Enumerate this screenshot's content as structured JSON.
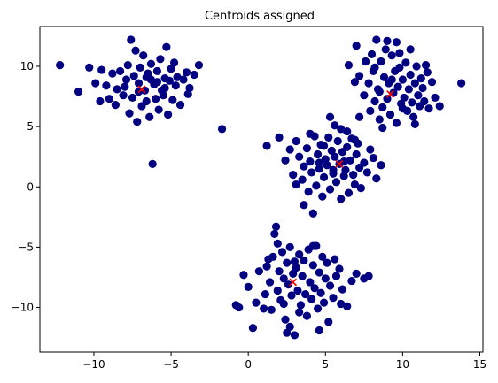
{
  "chart_data": {
    "type": "scatter",
    "title": "Centroids assigned",
    "xlabel": "",
    "ylabel": "",
    "xlim": [
      -13.5,
      15.2
    ],
    "ylim": [
      -13.7,
      13.3
    ],
    "xticks": [
      -10,
      -5,
      0,
      5,
      10,
      15
    ],
    "yticks": [
      -10,
      -5,
      0,
      5,
      10
    ],
    "grid": false,
    "colors": {
      "points": "#000080",
      "centroids": "#ff0000"
    },
    "series": [
      {
        "marker": "circle",
        "color": "#000080",
        "points": [
          [
            -12.2,
            10.1
          ],
          [
            -11.0,
            7.9
          ],
          [
            -10.3,
            9.9
          ],
          [
            -9.9,
            8.6
          ],
          [
            -9.6,
            7.1
          ],
          [
            -9.5,
            9.7
          ],
          [
            -9.2,
            8.4
          ],
          [
            -9.0,
            7.3
          ],
          [
            -8.8,
            9.4
          ],
          [
            -8.6,
            6.8
          ],
          [
            -8.5,
            8.1
          ],
          [
            -8.3,
            9.6
          ],
          [
            -8.1,
            7.6
          ],
          [
            -7.9,
            8.9
          ],
          [
            -7.8,
            10.1
          ],
          [
            -7.7,
            6.1
          ],
          [
            -7.6,
            12.2
          ],
          [
            -7.5,
            7.4
          ],
          [
            -7.4,
            9.2
          ],
          [
            -7.3,
            11.3
          ],
          [
            -7.2,
            5.4
          ],
          [
            -7.1,
            8.6
          ],
          [
            -7.0,
            9.9
          ],
          [
            -6.9,
            6.7
          ],
          [
            -6.8,
            10.9
          ],
          [
            -6.7,
            8.0
          ],
          [
            -6.6,
            7.1
          ],
          [
            -6.5,
            9.4
          ],
          [
            -6.4,
            5.8
          ],
          [
            -6.3,
            10.2
          ],
          [
            -6.2,
            1.9
          ],
          [
            -6.1,
            8.5
          ],
          [
            -6.0,
            7.3
          ],
          [
            -5.9,
            9.6
          ],
          [
            -5.8,
            6.4
          ],
          [
            -5.7,
            10.6
          ],
          [
            -5.6,
            8.0
          ],
          [
            -5.5,
            7.6
          ],
          [
            -5.4,
            9.0
          ],
          [
            -5.3,
            11.6
          ],
          [
            -5.2,
            6.0
          ],
          [
            -5.1,
            8.8
          ],
          [
            -5.0,
            9.8
          ],
          [
            -4.9,
            7.2
          ],
          [
            -4.8,
            10.3
          ],
          [
            -4.7,
            8.4
          ],
          [
            -4.6,
            9.1
          ],
          [
            -4.4,
            6.8
          ],
          [
            -4.2,
            8.9
          ],
          [
            -4.0,
            9.5
          ],
          [
            -3.8,
            8.2
          ],
          [
            -3.5,
            9.3
          ],
          [
            -3.2,
            10.1
          ],
          [
            -3.9,
            7.7
          ],
          [
            -6.3,
            8.9
          ],
          [
            -7.1,
            7.9
          ],
          [
            -8.0,
            8.3
          ],
          [
            -6.6,
            9.1
          ],
          [
            -5.9,
            8.7
          ],
          [
            -5.4,
            8.2
          ],
          [
            -1.7,
            4.8
          ],
          [
            1.2,
            3.4
          ],
          [
            2.0,
            4.1
          ],
          [
            2.4,
            2.2
          ],
          [
            2.7,
            3.1
          ],
          [
            2.9,
            1.0
          ],
          [
            3.1,
            3.8
          ],
          [
            3.3,
            2.5
          ],
          [
            3.5,
            0.6
          ],
          [
            3.6,
            1.7
          ],
          [
            3.8,
            3.2
          ],
          [
            3.9,
            -0.4
          ],
          [
            4.0,
            2.1
          ],
          [
            4.1,
            1.2
          ],
          [
            4.2,
            -2.2
          ],
          [
            4.3,
            4.2
          ],
          [
            4.4,
            0.1
          ],
          [
            4.5,
            2.7
          ],
          [
            4.6,
            1.5
          ],
          [
            4.7,
            3.5
          ],
          [
            4.8,
            -0.8
          ],
          [
            4.9,
            0.8
          ],
          [
            5.0,
            2.3
          ],
          [
            5.1,
            1.8
          ],
          [
            5.2,
            4.1
          ],
          [
            5.3,
            -0.2
          ],
          [
            5.4,
            3.0
          ],
          [
            5.5,
            1.1
          ],
          [
            5.6,
            2.5
          ],
          [
            5.7,
            0.4
          ],
          [
            5.8,
            3.8
          ],
          [
            5.9,
            1.9
          ],
          [
            6.0,
            -1.0
          ],
          [
            6.1,
            2.9
          ],
          [
            6.2,
            0.9
          ],
          [
            6.3,
            1.4
          ],
          [
            6.4,
            3.3
          ],
          [
            6.5,
            -0.5
          ],
          [
            6.6,
            2.2
          ],
          [
            6.7,
            4.0
          ],
          [
            6.8,
            1.0
          ],
          [
            6.9,
            0.2
          ],
          [
            7.0,
            2.7
          ],
          [
            7.1,
            3.6
          ],
          [
            7.2,
            1.6
          ],
          [
            7.3,
            -0.1
          ],
          [
            7.5,
            2.0
          ],
          [
            7.7,
            1.2
          ],
          [
            7.9,
            3.1
          ],
          [
            8.1,
            2.4
          ],
          [
            8.3,
            0.7
          ],
          [
            8.6,
            1.8
          ],
          [
            5.3,
            5.8
          ],
          [
            5.6,
            5.1
          ],
          [
            6.0,
            4.8
          ],
          [
            6.4,
            4.6
          ],
          [
            6.9,
            3.9
          ],
          [
            4.6,
            2.0
          ],
          [
            5.5,
            1.4
          ],
          [
            6.2,
            2.1
          ],
          [
            4.9,
            3.4
          ],
          [
            3.6,
            -1.5
          ],
          [
            8.7,
            4.9
          ],
          [
            4.0,
            4.4
          ],
          [
            3.1,
            0.2
          ],
          [
            6.5,
            10.1
          ],
          [
            7.0,
            11.7
          ],
          [
            7.2,
            9.2
          ],
          [
            7.5,
            7.6
          ],
          [
            7.6,
            10.4
          ],
          [
            7.8,
            8.6
          ],
          [
            7.9,
            6.3
          ],
          [
            8.0,
            11.0
          ],
          [
            8.1,
            9.6
          ],
          [
            8.2,
            7.1
          ],
          [
            8.3,
            12.2
          ],
          [
            8.4,
            8.1
          ],
          [
            8.5,
            5.6
          ],
          [
            8.6,
            10.4
          ],
          [
            8.7,
            6.6
          ],
          [
            8.8,
            9.1
          ],
          [
            8.9,
            11.4
          ],
          [
            9.0,
            7.3
          ],
          [
            9.1,
            8.6
          ],
          [
            9.2,
            6.0
          ],
          [
            9.3,
            10.9
          ],
          [
            9.4,
            7.8
          ],
          [
            9.5,
            9.6
          ],
          [
            9.6,
            5.3
          ],
          [
            9.7,
            8.3
          ],
          [
            9.8,
            11.1
          ],
          [
            9.9,
            6.9
          ],
          [
            10.0,
            8.9
          ],
          [
            10.1,
            7.4
          ],
          [
            10.2,
            10.3
          ],
          [
            10.3,
            6.3
          ],
          [
            10.4,
            8.1
          ],
          [
            10.5,
            9.3
          ],
          [
            10.6,
            7.0
          ],
          [
            10.7,
            5.8
          ],
          [
            10.8,
            8.6
          ],
          [
            10.9,
            10.0
          ],
          [
            11.0,
            7.6
          ],
          [
            11.1,
            6.7
          ],
          [
            11.2,
            9.0
          ],
          [
            11.3,
            8.2
          ],
          [
            11.4,
            7.1
          ],
          [
            11.5,
            10.1
          ],
          [
            11.7,
            6.5
          ],
          [
            11.9,
            8.7
          ],
          [
            12.1,
            7.4
          ],
          [
            12.4,
            6.7
          ],
          [
            13.8,
            8.6
          ],
          [
            9.0,
            12.1
          ],
          [
            9.6,
            12.0
          ],
          [
            8.2,
            9.9
          ],
          [
            9.3,
            8.9
          ],
          [
            10.0,
            6.5
          ],
          [
            8.5,
            7.9
          ],
          [
            10.5,
            11.4
          ],
          [
            6.9,
            8.7
          ],
          [
            7.2,
            5.8
          ],
          [
            9.8,
            9.9
          ],
          [
            10.8,
            5.2
          ],
          [
            11.6,
            9.5
          ],
          [
            1.2,
            -6.6
          ],
          [
            1.4,
            -7.9
          ],
          [
            1.6,
            -5.8
          ],
          [
            1.7,
            -3.9
          ],
          [
            1.8,
            -3.3
          ],
          [
            1.9,
            -8.6
          ],
          [
            2.0,
            -7.0
          ],
          [
            2.1,
            -9.4
          ],
          [
            2.2,
            -5.4
          ],
          [
            2.3,
            -7.6
          ],
          [
            2.4,
            -11.0
          ],
          [
            2.5,
            -6.3
          ],
          [
            2.6,
            -8.1
          ],
          [
            2.7,
            -5.0
          ],
          [
            2.8,
            -9.0
          ],
          [
            2.9,
            -7.2
          ],
          [
            3.0,
            -12.3
          ],
          [
            3.1,
            -6.7
          ],
          [
            3.2,
            -8.6
          ],
          [
            3.3,
            -5.6
          ],
          [
            3.4,
            -9.8
          ],
          [
            3.5,
            -7.4
          ],
          [
            3.6,
            -6.1
          ],
          [
            3.7,
            -8.9
          ],
          [
            3.8,
            -10.7
          ],
          [
            3.9,
            -5.2
          ],
          [
            4.0,
            -7.9
          ],
          [
            4.1,
            -9.3
          ],
          [
            4.2,
            -6.5
          ],
          [
            4.3,
            -8.4
          ],
          [
            4.4,
            -4.9
          ],
          [
            4.5,
            -10.1
          ],
          [
            4.6,
            -7.1
          ],
          [
            4.7,
            -8.8
          ],
          [
            4.8,
            -5.8
          ],
          [
            4.9,
            -9.6
          ],
          [
            5.0,
            -7.6
          ],
          [
            5.1,
            -6.3
          ],
          [
            5.3,
            -8.2
          ],
          [
            5.5,
            -9.2
          ],
          [
            5.7,
            -7.4
          ],
          [
            5.9,
            -6.8
          ],
          [
            6.1,
            -8.5
          ],
          [
            6.4,
            -9.9
          ],
          [
            6.7,
            -7.8
          ],
          [
            7.0,
            -7.2
          ],
          [
            7.5,
            -7.6
          ],
          [
            7.8,
            -7.4
          ],
          [
            2.3,
            -9.7
          ],
          [
            2.5,
            -12.1
          ],
          [
            1.0,
            -10.1
          ],
          [
            0.5,
            -9.6
          ],
          [
            -0.6,
            -10.0
          ],
          [
            -0.8,
            -9.8
          ],
          [
            -0.3,
            -7.3
          ],
          [
            0.0,
            -8.3
          ],
          [
            0.3,
            -11.7
          ],
          [
            0.7,
            -7.0
          ],
          [
            1.1,
            -8.9
          ],
          [
            1.5,
            -10.2
          ],
          [
            1.9,
            -4.7
          ],
          [
            3.0,
            -6.2
          ],
          [
            3.3,
            -10.4
          ],
          [
            4.6,
            -11.9
          ],
          [
            5.2,
            -11.2
          ],
          [
            6.0,
            -9.7
          ],
          [
            4.2,
            -4.9
          ],
          [
            2.7,
            -11.6
          ],
          [
            1.3,
            -6.0
          ],
          [
            5.6,
            -6.0
          ]
        ]
      },
      {
        "marker": "x",
        "color": "#ff0000",
        "points": [
          [
            -6.9,
            8.1
          ],
          [
            5.9,
            1.9
          ],
          [
            9.2,
            7.7
          ],
          [
            2.9,
            -7.9
          ]
        ]
      }
    ]
  }
}
